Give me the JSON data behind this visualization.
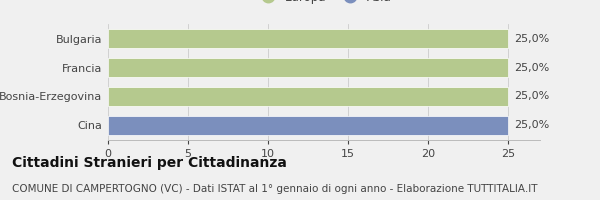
{
  "categories": [
    "Bulgaria",
    "Francia",
    "Bosnia-Erzegovina",
    "Cina"
  ],
  "values": [
    25.0,
    25.0,
    25.0,
    25.0
  ],
  "colors": [
    "#b5c98e",
    "#b5c98e",
    "#b5c98e",
    "#7b8fbd"
  ],
  "bar_labels": [
    "25,0%",
    "25,0%",
    "25,0%",
    "25,0%"
  ],
  "xlim": [
    0,
    27
  ],
  "xticks": [
    0,
    5,
    10,
    15,
    20,
    25
  ],
  "legend_europa_color": "#b5c98e",
  "legend_asia_color": "#7b8fbd",
  "title": "Cittadini Stranieri per Cittadinanza",
  "subtitle": "COMUNE DI CAMPERTOGNO (VC) - Dati ISTAT al 1° gennaio di ogni anno - Elaborazione TUTTITALIA.IT",
  "bg_color": "#f0f0f0",
  "bar_edge_color": "white",
  "title_fontsize": 10,
  "subtitle_fontsize": 7.5,
  "label_fontsize": 8,
  "tick_fontsize": 8,
  "legend_fontsize": 8.5
}
